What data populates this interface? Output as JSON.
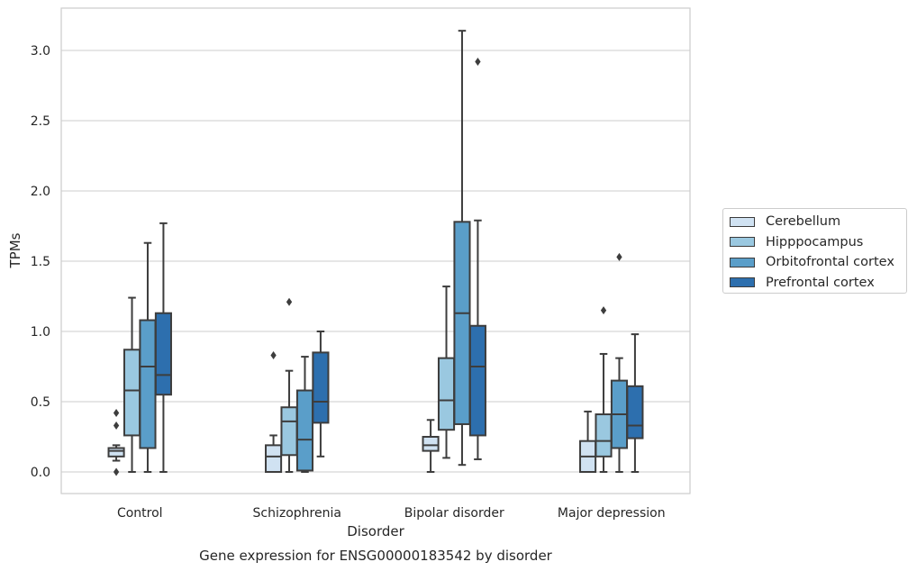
{
  "chart_data": {
    "type": "box",
    "title": "",
    "caption": "Gene expression for ENSG00000183542 by disorder",
    "xlabel": "Disorder",
    "ylabel": "TPMs",
    "ylim": [
      -0.15,
      3.3
    ],
    "yticks": [
      "0.0",
      "0.5",
      "1.0",
      "1.5",
      "2.0",
      "2.5",
      "3.0"
    ],
    "grid": "horizontal",
    "legend_position": "right",
    "categories": [
      "Control",
      "Schizophrenia",
      "Bipolar disorder",
      "Major depression"
    ],
    "series": [
      {
        "name": "Cerebellum",
        "color": "#d0e2f2",
        "boxes": [
          {
            "whisker_low": 0.08,
            "q1": 0.11,
            "median": 0.15,
            "q3": 0.17,
            "whisker_high": 0.19,
            "outliers": [
              0.42,
              0.33,
              0.0
            ]
          },
          {
            "whisker_low": 0.0,
            "q1": 0.0,
            "median": 0.11,
            "q3": 0.19,
            "whisker_high": 0.26,
            "outliers": [
              0.83
            ]
          },
          {
            "whisker_low": 0.0,
            "q1": 0.15,
            "median": 0.19,
            "q3": 0.25,
            "whisker_high": 0.37,
            "outliers": []
          },
          {
            "whisker_low": 0.0,
            "q1": 0.0,
            "median": 0.11,
            "q3": 0.22,
            "whisker_high": 0.43,
            "outliers": []
          }
        ]
      },
      {
        "name": "Hipppocampus",
        "color": "#9ac8e0",
        "boxes": [
          {
            "whisker_low": 0.0,
            "q1": 0.26,
            "median": 0.58,
            "q3": 0.87,
            "whisker_high": 1.24,
            "outliers": []
          },
          {
            "whisker_low": 0.0,
            "q1": 0.12,
            "median": 0.36,
            "q3": 0.46,
            "whisker_high": 0.72,
            "outliers": [
              1.21
            ]
          },
          {
            "whisker_low": 0.1,
            "q1": 0.3,
            "median": 0.51,
            "q3": 0.81,
            "whisker_high": 1.32,
            "outliers": []
          },
          {
            "whisker_low": 0.0,
            "q1": 0.11,
            "median": 0.22,
            "q3": 0.41,
            "whisker_high": 0.84,
            "outliers": [
              1.15
            ]
          }
        ]
      },
      {
        "name": "Orbitofrontal cortex",
        "color": "#5a9ec9",
        "boxes": [
          {
            "whisker_low": 0.0,
            "q1": 0.17,
            "median": 0.75,
            "q3": 1.08,
            "whisker_high": 1.63,
            "outliers": []
          },
          {
            "whisker_low": 0.0,
            "q1": 0.01,
            "median": 0.23,
            "q3": 0.58,
            "whisker_high": 0.82,
            "outliers": []
          },
          {
            "whisker_low": 0.05,
            "q1": 0.34,
            "median": 1.13,
            "q3": 1.78,
            "whisker_high": 3.14,
            "outliers": []
          },
          {
            "whisker_low": 0.0,
            "q1": 0.17,
            "median": 0.41,
            "q3": 0.65,
            "whisker_high": 0.81,
            "outliers": [
              1.53
            ]
          }
        ]
      },
      {
        "name": "Prefrontal cortex",
        "color": "#2d6fae",
        "boxes": [
          {
            "whisker_low": 0.0,
            "q1": 0.55,
            "median": 0.69,
            "q3": 1.13,
            "whisker_high": 1.77,
            "outliers": []
          },
          {
            "whisker_low": 0.11,
            "q1": 0.35,
            "median": 0.5,
            "q3": 0.85,
            "whisker_high": 1.0,
            "outliers": []
          },
          {
            "whisker_low": 0.09,
            "q1": 0.26,
            "median": 0.75,
            "q3": 1.04,
            "whisker_high": 1.79,
            "outliers": [
              2.92
            ]
          },
          {
            "whisker_low": 0.0,
            "q1": 0.24,
            "median": 0.33,
            "q3": 0.61,
            "whisker_high": 0.98,
            "outliers": []
          }
        ]
      }
    ]
  }
}
